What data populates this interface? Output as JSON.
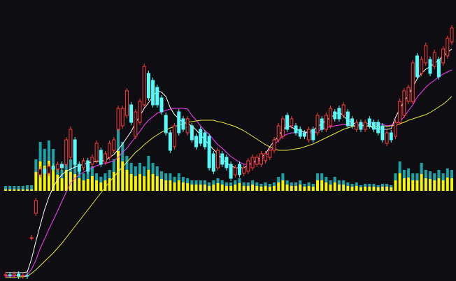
{
  "chart_data": {
    "type": "candlestick",
    "ylim": [
      0,
      400
    ],
    "up_color": "#ff3c3c",
    "down_color": "#54fcfc",
    "open": [
      6,
      7,
      6,
      8,
      5,
      6,
      60,
      95,
      150,
      158,
      152,
      162,
      158,
      165,
      165,
      175,
      200,
      165,
      160,
      170,
      165,
      170,
      185,
      168,
      175,
      185,
      215,
      220,
      235,
      250,
      205,
      225,
      250,
      295,
      285,
      275,
      260,
      235,
      210,
      190,
      240,
      230,
      210,
      220,
      205,
      215,
      210,
      205,
      180,
      160,
      180,
      175,
      165,
      150,
      165,
      152,
      155,
      160,
      165,
      165,
      170,
      175,
      185,
      200,
      205,
      235,
      220,
      220,
      215,
      210,
      200,
      215,
      210,
      230,
      215,
      220,
      240,
      245,
      235,
      240,
      230,
      215,
      225,
      215,
      230,
      225,
      225,
      220,
      195,
      210,
      205,
      225,
      235,
      255,
      255,
      320,
      295,
      310,
      315,
      305,
      315,
      310,
      320,
      340
    ],
    "close": [
      7,
      6,
      8,
      5,
      6,
      5,
      60,
      113,
      158,
      152,
      162,
      158,
      165,
      160,
      200,
      215,
      165,
      155,
      170,
      155,
      175,
      195,
      165,
      180,
      195,
      200,
      245,
      245,
      270,
      225,
      240,
      255,
      305,
      260,
      250,
      250,
      240,
      210,
      185,
      220,
      210,
      215,
      230,
      200,
      190,
      195,
      190,
      160,
      155,
      185,
      165,
      160,
      145,
      160,
      150,
      160,
      170,
      175,
      175,
      180,
      180,
      185,
      200,
      220,
      230,
      215,
      230,
      210,
      205,
      205,
      215,
      200,
      235,
      215,
      235,
      245,
      230,
      230,
      250,
      220,
      220,
      225,
      215,
      225,
      220,
      215,
      210,
      200,
      210,
      200,
      225,
      255,
      270,
      275,
      310,
      290,
      315,
      335,
      295,
      325,
      290,
      330,
      345,
      360
    ],
    "high": [
      11,
      11,
      12,
      12,
      10,
      10,
      64,
      117,
      162,
      162,
      166,
      166,
      169,
      169,
      204,
      219,
      204,
      169,
      174,
      174,
      179,
      199,
      189,
      184,
      199,
      204,
      249,
      249,
      274,
      254,
      244,
      259,
      309,
      299,
      289,
      279,
      264,
      239,
      214,
      224,
      244,
      234,
      234,
      224,
      209,
      219,
      214,
      209,
      184,
      189,
      184,
      179,
      169,
      164,
      169,
      164,
      174,
      179,
      179,
      184,
      184,
      189,
      204,
      224,
      234,
      239,
      234,
      224,
      219,
      214,
      219,
      219,
      239,
      234,
      239,
      249,
      244,
      249,
      254,
      244,
      234,
      229,
      229,
      229,
      234,
      229,
      229,
      224,
      214,
      214,
      229,
      259,
      274,
      279,
      314,
      324,
      319,
      339,
      319,
      329,
      319,
      334,
      349,
      364
    ],
    "low": [
      2,
      2,
      2,
      1,
      1,
      1,
      56,
      91,
      146,
      148,
      148,
      154,
      154,
      156,
      161,
      171,
      161,
      151,
      156,
      151,
      161,
      166,
      161,
      164,
      171,
      181,
      211,
      216,
      231,
      221,
      201,
      221,
      246,
      256,
      246,
      246,
      236,
      206,
      181,
      186,
      206,
      211,
      206,
      196,
      186,
      191,
      186,
      156,
      151,
      156,
      161,
      156,
      141,
      146,
      146,
      148,
      151,
      156,
      161,
      161,
      166,
      171,
      181,
      196,
      201,
      211,
      216,
      206,
      201,
      201,
      196,
      196,
      206,
      211,
      211,
      216,
      226,
      226,
      231,
      216,
      216,
      211,
      211,
      211,
      216,
      211,
      206,
      196,
      191,
      196,
      201,
      221,
      231,
      251,
      251,
      286,
      291,
      306,
      291,
      301,
      286,
      306,
      316,
      336
    ],
    "lines": [
      {
        "color": "#ffffff",
        "values": [
          10,
          10,
          10,
          10,
          10,
          11,
          30,
          55,
          78,
          100,
          118,
          132,
          143,
          150,
          155,
          158,
          161,
          163,
          165,
          167,
          168,
          169,
          170,
          170,
          175,
          179,
          186,
          194,
          203,
          212,
          224,
          234,
          245,
          253,
          262,
          270,
          268,
          262,
          246,
          236,
          230,
          225,
          223,
          220,
          214,
          207,
          200,
          193,
          186,
          180,
          172,
          167,
          163,
          160,
          160,
          160,
          164,
          167,
          171,
          175,
          180,
          190,
          198,
          205,
          214,
          220,
          218,
          215,
          213,
          211,
          211,
          214,
          219,
          223,
          228,
          232,
          236,
          240,
          234,
          228,
          225,
          222,
          221,
          220,
          219,
          217,
          216,
          215,
          215,
          216,
          232,
          244,
          255,
          264,
          276,
          287,
          295,
          301,
          305,
          309,
          314,
          320,
          325,
          330
        ]
      },
      {
        "color": "#ff3cff",
        "values": [
          5,
          5,
          5,
          6,
          6,
          7,
          15,
          28,
          45,
          58,
          72,
          85,
          98,
          112,
          125,
          138,
          145,
          150,
          154,
          157,
          160,
          163,
          165,
          166,
          168,
          170,
          175,
          182,
          188,
          196,
          204,
          212,
          221,
          228,
          233,
          238,
          240,
          242,
          244,
          245,
          245,
          245,
          244,
          235,
          228,
          220,
          213,
          208,
          200,
          193,
          188,
          182,
          176,
          172,
          168,
          165,
          165,
          167,
          169,
          172,
          177,
          182,
          191,
          200,
          205,
          208,
          210,
          210,
          210,
          210,
          210,
          210,
          212,
          215,
          217,
          219,
          220,
          221,
          222,
          221,
          220,
          221,
          222,
          223,
          224,
          225,
          224,
          222,
          220,
          221,
          223,
          226,
          233,
          242,
          250,
          261,
          268,
          275,
          281,
          285,
          290,
          294,
          297,
          300
        ]
      },
      {
        "color": "#e8e83c",
        "values": [
          3,
          3,
          3,
          4,
          4,
          5,
          9,
          14,
          20,
          26,
          32,
          38,
          45,
          52,
          60,
          68,
          76,
          84,
          92,
          100,
          108,
          116,
          124,
          132,
          140,
          147,
          154,
          161,
          168,
          175,
          182,
          187,
          193,
          198,
          203,
          207,
          211,
          214,
          217,
          219,
          221,
          223,
          225,
          226,
          227,
          228,
          228,
          228,
          228,
          226,
          225,
          223,
          221,
          219,
          216,
          213,
          209,
          205,
          201,
          197,
          193,
          190,
          187,
          185,
          185,
          185,
          186,
          187,
          188,
          190,
          192,
          194,
          197,
          200,
          203,
          206,
          209,
          212,
          215,
          217,
          219,
          220,
          220,
          220,
          220,
          219,
          218,
          218,
          219,
          220,
          221,
          223,
          225,
          228,
          230,
          232,
          234,
          236,
          239,
          243,
          247,
          251,
          256,
          262
        ]
      }
    ],
    "volume": {
      "ylim": [
        0,
        100
      ],
      "series": [
        {
          "color": "#f6f600",
          "values": [
            2,
            2,
            2,
            2,
            2,
            2,
            2,
            27,
            42,
            36,
            43,
            36,
            23,
            18,
            30,
            27,
            24,
            18,
            15,
            17,
            21,
            15,
            12,
            15,
            18,
            27,
            57,
            42,
            30,
            24,
            21,
            24,
            21,
            30,
            24,
            21,
            17,
            15,
            15,
            12,
            15,
            12,
            11,
            9,
            9,
            9,
            9,
            7,
            9,
            11,
            9,
            7,
            7,
            9,
            11,
            7,
            7,
            9,
            7,
            6,
            7,
            6,
            7,
            12,
            15,
            9,
            7,
            7,
            9,
            6,
            7,
            6,
            15,
            15,
            12,
            9,
            12,
            9,
            9,
            7,
            6,
            7,
            5,
            6,
            6,
            6,
            5,
            6,
            6,
            5,
            15,
            25,
            18,
            19,
            15,
            15,
            24,
            18,
            17,
            15,
            18,
            15,
            19,
            18
          ]
        },
        {
          "color": "#1ba3a8",
          "values": [
            5,
            5,
            5,
            5,
            5,
            6,
            6,
            18,
            28,
            24,
            29,
            24,
            15,
            12,
            20,
            18,
            16,
            12,
            10,
            11,
            14,
            10,
            8,
            10,
            12,
            18,
            38,
            28,
            20,
            16,
            14,
            16,
            14,
            20,
            16,
            14,
            11,
            10,
            10,
            8,
            10,
            8,
            7,
            6,
            6,
            6,
            6,
            5,
            6,
            7,
            6,
            5,
            5,
            6,
            7,
            5,
            5,
            6,
            5,
            4,
            5,
            4,
            5,
            8,
            10,
            6,
            5,
            5,
            6,
            4,
            5,
            4,
            10,
            10,
            8,
            6,
            8,
            6,
            6,
            5,
            4,
            5,
            3,
            4,
            4,
            4,
            3,
            4,
            4,
            3,
            10,
            17,
            12,
            13,
            10,
            10,
            16,
            12,
            11,
            10,
            12,
            10,
            13,
            12
          ]
        }
      ]
    }
  }
}
